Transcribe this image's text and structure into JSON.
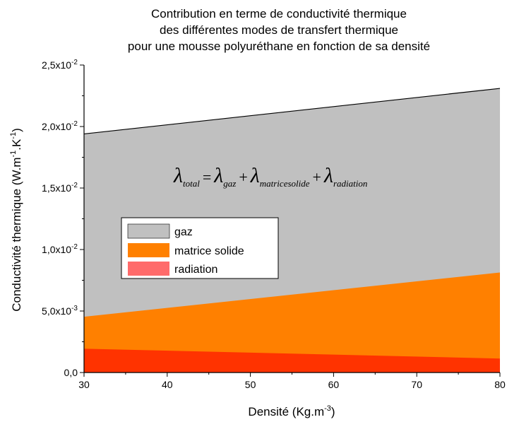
{
  "chart_data": {
    "type": "area",
    "title_lines": [
      "Contribution en terme de conductivité thermique",
      "des différentes modes de transfert thermique",
      "pour une mousse polyuréthane en fonction de sa densité"
    ],
    "xlabel_main": "Densité (Kg.m",
    "xlabel_sup": "-3",
    "xlabel_end": ")",
    "ylabel_main": "Conductivité thermique (W.m",
    "ylabel_sup1": "-1",
    "ylabel_mid": ".K",
    "ylabel_sup2": "-1",
    "ylabel_end": ")",
    "xlim": [
      30,
      80
    ],
    "ylim": [
      0,
      0.025
    ],
    "x_ticks": [
      30,
      40,
      50,
      60,
      70,
      80
    ],
    "y_ticks": [
      {
        "value": 0.0,
        "label": "0,0",
        "exp": ""
      },
      {
        "value": 0.005,
        "label": "5,0x10",
        "exp": "-3"
      },
      {
        "value": 0.01,
        "label": "1,0x10",
        "exp": "-2"
      },
      {
        "value": 0.015,
        "label": "1,5x10",
        "exp": "-2"
      },
      {
        "value": 0.02,
        "label": "2,0x10",
        "exp": "-2"
      },
      {
        "value": 0.025,
        "label": "2,5x10",
        "exp": "-2"
      }
    ],
    "x": [
      30,
      80
    ],
    "series": [
      {
        "name": "radiation",
        "values": [
          0.0019,
          0.0011
        ],
        "color": "#ff3300"
      },
      {
        "name": "matrice solide",
        "values": [
          0.0045,
          0.0081
        ],
        "color": "#ff8000"
      },
      {
        "name": "gaz",
        "values": [
          0.0194,
          0.0231
        ],
        "color": "#c0c0c0"
      }
    ],
    "legend_items": [
      {
        "name": "gaz",
        "color": "#c0c0c0"
      },
      {
        "name": "matrice solide",
        "color": "#ff8000"
      },
      {
        "name": "radiation",
        "color": "#ff6b6b"
      }
    ],
    "legend_position": "center-left",
    "formula": {
      "lambda": "λ",
      "t1": "total",
      "t2": "gaz",
      "t3": "matricesolide",
      "t4": "radiation",
      "eq": "=",
      "plus": "+"
    }
  }
}
